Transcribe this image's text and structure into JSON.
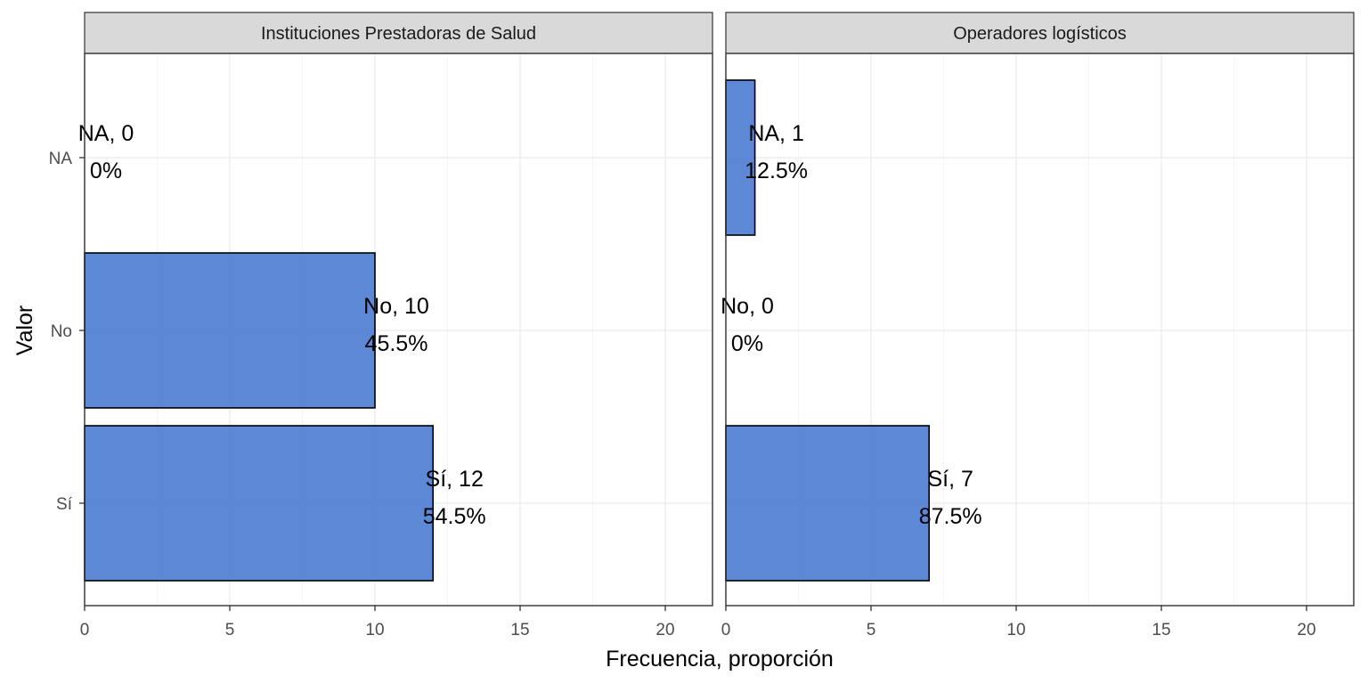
{
  "chart_data": {
    "type": "bar",
    "orientation": "horizontal",
    "xlabel": "Frecuencia, proporción",
    "ylabel": "Valor",
    "xlim": [
      0,
      21.5
    ],
    "x_ticks": [
      0,
      5,
      10,
      15,
      20
    ],
    "categories": [
      "NA",
      "No",
      "Sí"
    ],
    "grid": true,
    "bar_color": "#4a7bd2",
    "panels": [
      {
        "strip": "Instituciones Prestadoras de Salud",
        "bars": [
          {
            "category": "NA",
            "value": 0,
            "label_top": "NA, 0",
            "label_bottom": "0%"
          },
          {
            "category": "No",
            "value": 10,
            "label_top": "No, 10",
            "label_bottom": "45.5%"
          },
          {
            "category": "Sí",
            "value": 12,
            "label_top": "Sí, 12",
            "label_bottom": "54.5%"
          }
        ]
      },
      {
        "strip": "Operadores logísticos",
        "bars": [
          {
            "category": "NA",
            "value": 1,
            "label_top": "NA, 1",
            "label_bottom": "12.5%"
          },
          {
            "category": "No",
            "value": 0,
            "label_top": "No, 0",
            "label_bottom": "0%"
          },
          {
            "category": "Sí",
            "value": 7,
            "label_top": "Sí, 7",
            "label_bottom": "87.5%"
          }
        ]
      }
    ]
  }
}
